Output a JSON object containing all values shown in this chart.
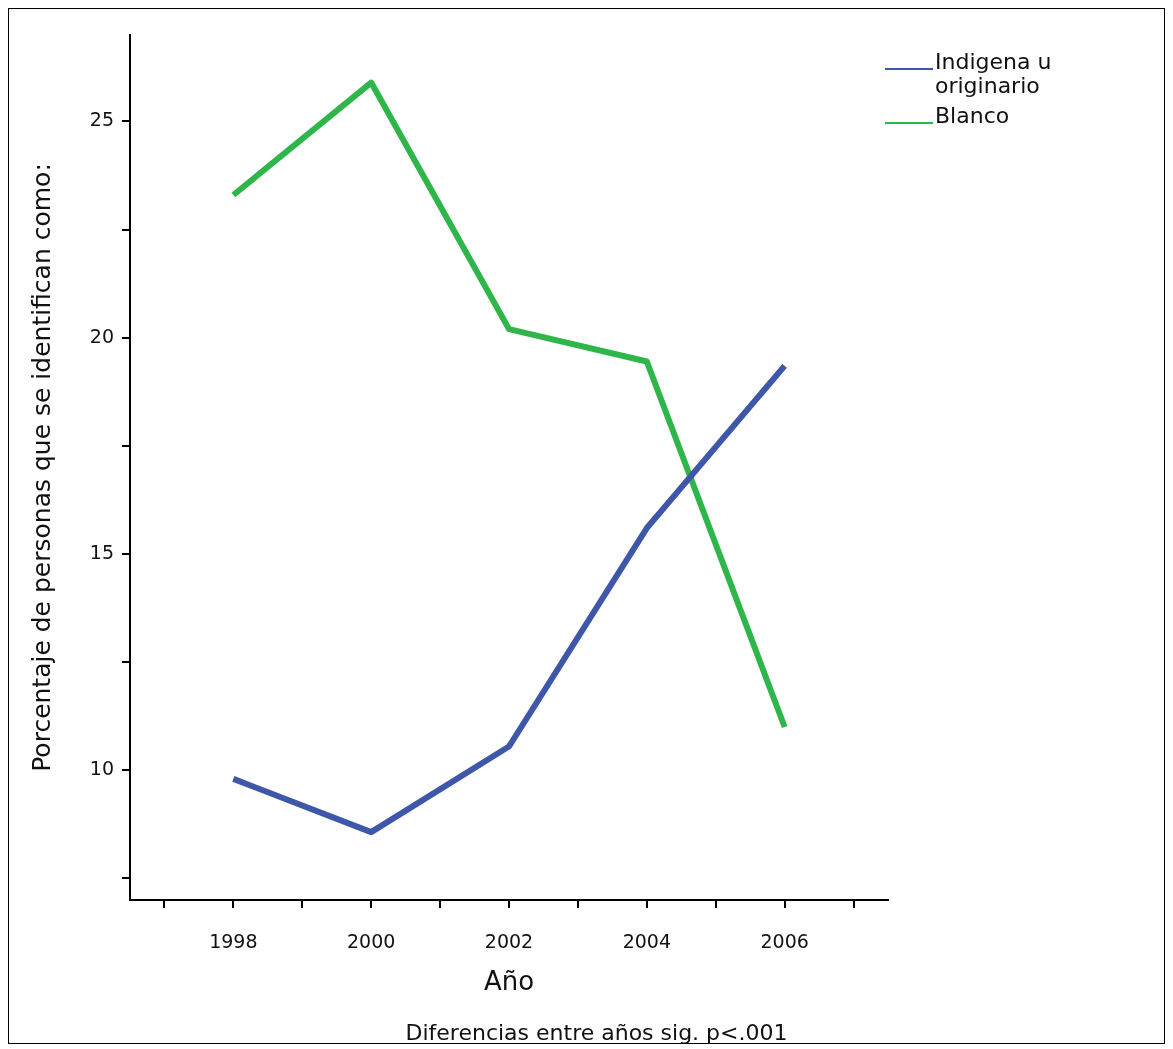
{
  "chart_data": {
    "type": "line",
    "xlabel": "Año",
    "ylabel": "Porcentaje de personas que se identifican como:",
    "annotations": [
      "Diferencias entre años sig. p<.001"
    ],
    "x": [
      1998,
      2000,
      2002,
      2004,
      2006
    ],
    "series": [
      {
        "name": "Indigena u originario",
        "color": "#3f57a8",
        "values": [
          9.8,
          8.57,
          10.55,
          15.6,
          19.35
        ]
      },
      {
        "name": "Blanco",
        "color": "#2fb64a",
        "values": [
          23.3,
          25.9,
          20.2,
          19.45,
          11.0
        ]
      }
    ],
    "xlim": [
      1996.5,
      2007.5
    ],
    "xticks": [
      {
        "value": 1997,
        "label": null
      },
      1998,
      {
        "value": 1999,
        "label": null
      },
      2000,
      {
        "value": 2001,
        "label": null
      },
      2002,
      {
        "value": 2003,
        "label": null
      },
      2004,
      {
        "value": 2005,
        "label": null
      },
      2006,
      {
        "value": 2007,
        "label": null
      }
    ],
    "ylim": [
      7,
      27
    ],
    "yticks": [
      {
        "value": 7.5,
        "label": null
      },
      10,
      {
        "value": 12.5,
        "label": null
      },
      15,
      {
        "value": 17.5,
        "label": null
      },
      20,
      {
        "value": 22.5,
        "label": null
      },
      25
    ],
    "grid": false,
    "legend": "top right",
    "marker": "none",
    "line_style": "solid"
  }
}
